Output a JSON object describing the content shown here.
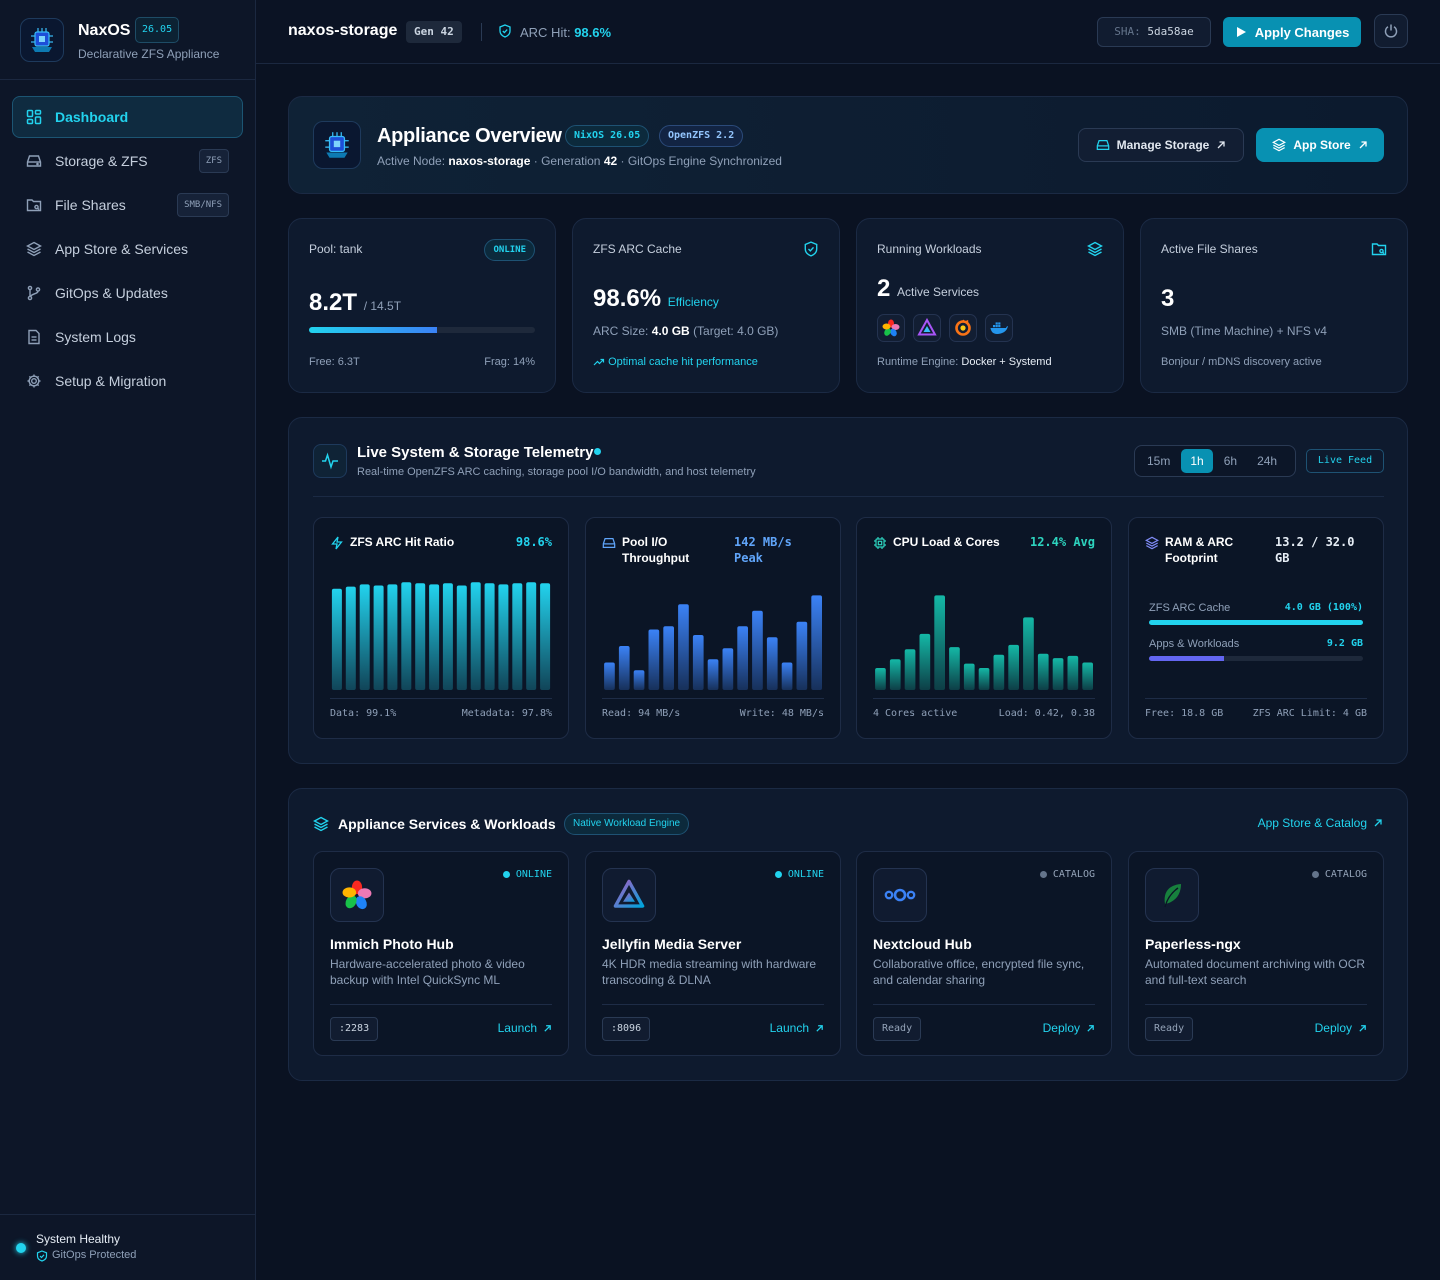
{
  "brand": {
    "name": "NaxOS",
    "version": "26.05",
    "subtitle": "Declarative ZFS Appliance"
  },
  "sidebar": {
    "items": [
      {
        "label": "Dashboard",
        "icon": "grid-icon",
        "active": true
      },
      {
        "label": "Storage & ZFS",
        "icon": "hard-drive-icon",
        "badge": "ZFS"
      },
      {
        "label": "File Shares",
        "icon": "folder-share-icon",
        "badge": "SMB/NFS"
      },
      {
        "label": "App Store & Services",
        "icon": "layers-icon"
      },
      {
        "label": "GitOps & Updates",
        "icon": "git-branch-icon"
      },
      {
        "label": "System Logs",
        "icon": "file-log-icon"
      },
      {
        "label": "Setup & Migration",
        "icon": "gear-icon"
      }
    ],
    "footer": {
      "status": "System Healthy",
      "sub": "GitOps Protected"
    }
  },
  "topbar": {
    "host": "naxos-storage",
    "gen": "Gen 42",
    "arc_label": "ARC Hit:",
    "arc_value": "98.6%",
    "sha_label": "SHA:",
    "sha_value": "5da58ae",
    "apply_label": "Apply Changes"
  },
  "overview": {
    "title": "Appliance Overview",
    "badge1": "NixOS 26.05",
    "badge2": "OpenZFS 2.2",
    "sub_prefix": "Active Node:",
    "node": "naxos-storage",
    "gen_prefix": "· Generation",
    "gen": "42",
    "sync": "· GitOps Engine Synchronized",
    "manage_label": "Manage Storage",
    "appstore_label": "App Store"
  },
  "stats": {
    "pool": {
      "label": "Pool: tank",
      "status": "ONLINE",
      "used": "8.2T",
      "total": "/ 14.5T",
      "fill": 0.565,
      "free": "Free: 6.3T",
      "frag": "Frag: 14%"
    },
    "arc": {
      "label": "ZFS ARC Cache",
      "value": "98.6%",
      "eff": "Efficiency",
      "size_label": "ARC Size:",
      "size": "4.0 GB",
      "target": "(Target: 4.0 GB)",
      "link": "Optimal cache hit performance"
    },
    "workloads": {
      "label": "Running Workloads",
      "count": "2",
      "unit": "Active Services",
      "engine_label": "Runtime Engine:",
      "engine": "Docker + Systemd"
    },
    "shares": {
      "label": "Active File Shares",
      "count": "3",
      "line": "SMB (Time Machine) + NFS v4",
      "foot": "Bonjour / mDNS discovery active"
    }
  },
  "telemetry": {
    "title": "Live System & Storage Telemetry",
    "subtitle": "Real-time OpenZFS ARC caching, storage pool I/O bandwidth, and host telemetry",
    "ranges": [
      "15m",
      "1h",
      "6h",
      "24h"
    ],
    "active_range": "1h",
    "live": "Live Feed",
    "arc": {
      "title": "ZFS ARC Hit Ratio",
      "value": "98.6%",
      "left": "Data: 99.1%",
      "right": "Metadata: 97.8%"
    },
    "io": {
      "title": "Pool I/O Throughput",
      "value": "142 MB/s Peak",
      "left": "Read: 94 MB/s",
      "right": "Write: 48 MB/s"
    },
    "cpu": {
      "title": "CPU Load & Cores",
      "value": "12.4% Avg",
      "left": "4 Cores active",
      "right": "Load: 0.42, 0.38"
    },
    "ram": {
      "title": "RAM & ARC Footprint",
      "value": "13.2 / 32.0 GB",
      "row1_label": "ZFS ARC Cache",
      "row1_value": "4.0 GB (100%)",
      "row1_fill": 1.0,
      "row2_label": "Apps & Workloads",
      "row2_value": "9.2 GB",
      "row2_fill": 0.35,
      "left": "Free: 18.8 GB",
      "right": "ZFS ARC Limit: 4 GB"
    }
  },
  "chart_data": [
    {
      "type": "bar",
      "title": "ZFS ARC Hit Ratio",
      "values": [
        92,
        94,
        96,
        95,
        96,
        98,
        97,
        96,
        97,
        95,
        98,
        97,
        96,
        97,
        98,
        97
      ],
      "color": "#22d3ee"
    },
    {
      "type": "bar",
      "title": "Pool I/O Throughput",
      "values": [
        25,
        40,
        18,
        55,
        58,
        78,
        50,
        28,
        38,
        58,
        72,
        48,
        25,
        62,
        86
      ],
      "color": "#3b82f6"
    },
    {
      "type": "bar",
      "title": "CPU Load & Cores",
      "values": [
        20,
        28,
        37,
        51,
        86,
        39,
        24,
        20,
        32,
        41,
        66,
        33,
        29,
        31,
        25
      ],
      "color": "#14b8a6"
    }
  ],
  "services": {
    "title": "Appliance Services & Workloads",
    "badge": "Native Workload Engine",
    "link": "App Store & Catalog",
    "cards": [
      {
        "name": "Immich Photo Hub",
        "desc": "Hardware-accelerated photo & video backup with Intel QuickSync ML",
        "status": "ONLINE",
        "port": ":2283",
        "action": "Launch",
        "icon": "immich-icon"
      },
      {
        "name": "Jellyfin Media Server",
        "desc": "4K HDR media streaming with hardware transcoding & DLNA",
        "status": "ONLINE",
        "port": ":8096",
        "action": "Launch",
        "icon": "jellyfin-icon"
      },
      {
        "name": "Nextcloud Hub",
        "desc": "Collaborative office, encrypted file sync, and calendar sharing",
        "status": "CATALOG",
        "port": "Ready",
        "action": "Deploy",
        "icon": "nextcloud-icon"
      },
      {
        "name": "Paperless-ngx",
        "desc": "Automated document archiving with OCR and full-text search",
        "status": "CATALOG",
        "port": "Ready",
        "action": "Deploy",
        "icon": "paperless-icon"
      }
    ]
  },
  "colors": {
    "accent": "#22d3ee",
    "background": "#0a1222",
    "panel": "#0e1a2e",
    "online": "#22d3ee",
    "catalog": "#64748b"
  }
}
